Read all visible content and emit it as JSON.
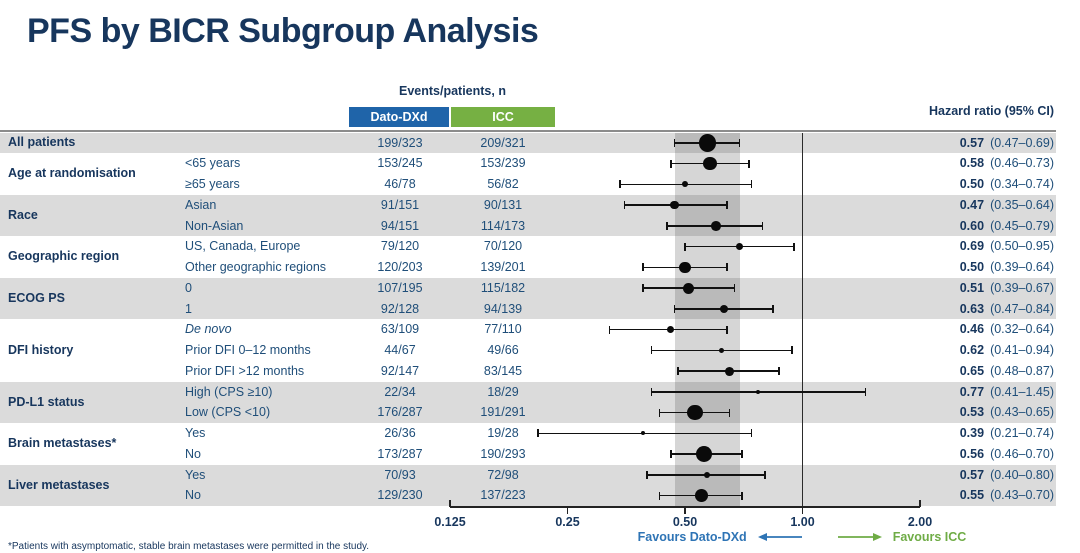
{
  "title": "PFS by BICR Subgroup Analysis",
  "header": {
    "events_label": "Events/patients, n",
    "arm1": "Dato-DXd",
    "arm2": "ICC",
    "hr_label": "Hazard ratio (95% CI)"
  },
  "favours": {
    "left_label": "Favours Dato-DXd",
    "right_label": "Favours ICC"
  },
  "footnote": "*Patients with asymptomatic, stable brain metastases were permitted in the study.",
  "colors": {
    "title_navy": "#17365D",
    "body_navy": "#1F4E79",
    "arm_dato_blue": "#1F64A9",
    "arm_icc_green": "#76B043",
    "favours_blue": "#2E74B5",
    "favours_green": "#6FAC46",
    "row_shade_gray": "#DBDBDB",
    "ci_band_gray": "#C3C3C3",
    "marker_black": "#0a0a0a"
  },
  "chart_data": {
    "type": "forest",
    "x_scale": "log2",
    "axis_ticks": [
      {
        "value": 0.125,
        "label": "0.125"
      },
      {
        "value": 0.25,
        "label": "0.25"
      },
      {
        "value": 0.5,
        "label": "0.50"
      },
      {
        "value": 1.0,
        "label": "1.00"
      },
      {
        "value": 2.0,
        "label": "2.00"
      }
    ],
    "reference_line": 1.0,
    "shaded_band": {
      "low": 0.47,
      "high": 0.69
    },
    "groups": [
      {
        "label": "All patients",
        "shaded": true,
        "rows": [
          {
            "subgroup": "",
            "dato": "199/323",
            "icc": "209/321",
            "hr": 0.57,
            "lo": 0.47,
            "hi": 0.69,
            "hr_text": "0.57",
            "ci_text": "(0.47–0.69)"
          }
        ]
      },
      {
        "label": "Age at randomisation",
        "shaded": false,
        "rows": [
          {
            "subgroup": "<65 years",
            "dato": "153/245",
            "icc": "153/239",
            "hr": 0.58,
            "lo": 0.46,
            "hi": 0.73,
            "hr_text": "0.58",
            "ci_text": "(0.46–0.73)"
          },
          {
            "subgroup": "≥65 years",
            "dato": "46/78",
            "icc": "56/82",
            "hr": 0.5,
            "lo": 0.34,
            "hi": 0.74,
            "hr_text": "0.50",
            "ci_text": "(0.34–0.74)"
          }
        ]
      },
      {
        "label": "Race",
        "shaded": true,
        "rows": [
          {
            "subgroup": "Asian",
            "dato": "91/151",
            "icc": "90/131",
            "hr": 0.47,
            "lo": 0.35,
            "hi": 0.64,
            "hr_text": "0.47",
            "ci_text": "(0.35–0.64)"
          },
          {
            "subgroup": "Non-Asian",
            "dato": "94/151",
            "icc": "114/173",
            "hr": 0.6,
            "lo": 0.45,
            "hi": 0.79,
            "hr_text": "0.60",
            "ci_text": "(0.45–0.79)"
          }
        ]
      },
      {
        "label": "Geographic region",
        "shaded": false,
        "rows": [
          {
            "subgroup": "US, Canada, Europe",
            "dato": "79/120",
            "icc": "70/120",
            "hr": 0.69,
            "lo": 0.5,
            "hi": 0.95,
            "hr_text": "0.69",
            "ci_text": "(0.50–0.95)"
          },
          {
            "subgroup": "Other geographic regions",
            "dato": "120/203",
            "icc": "139/201",
            "hr": 0.5,
            "lo": 0.39,
            "hi": 0.64,
            "hr_text": "0.50",
            "ci_text": "(0.39–0.64)"
          }
        ]
      },
      {
        "label": "ECOG PS",
        "shaded": true,
        "rows": [
          {
            "subgroup": "0",
            "dato": "107/195",
            "icc": "115/182",
            "hr": 0.51,
            "lo": 0.39,
            "hi": 0.67,
            "hr_text": "0.51",
            "ci_text": "(0.39–0.67)"
          },
          {
            "subgroup": "1",
            "dato": "92/128",
            "icc": "94/139",
            "hr": 0.63,
            "lo": 0.47,
            "hi": 0.84,
            "hr_text": "0.63",
            "ci_text": "(0.47–0.84)"
          }
        ]
      },
      {
        "label": "DFI history",
        "shaded": false,
        "rows": [
          {
            "subgroup": "De novo",
            "italic": true,
            "dato": "63/109",
            "icc": "77/110",
            "hr": 0.46,
            "lo": 0.32,
            "hi": 0.64,
            "hr_text": "0.46",
            "ci_text": "(0.32–0.64)"
          },
          {
            "subgroup": "Prior DFI 0–12 months",
            "dato": "44/67",
            "icc": "49/66",
            "hr": 0.62,
            "lo": 0.41,
            "hi": 0.94,
            "hr_text": "0.62",
            "ci_text": "(0.41–0.94)"
          },
          {
            "subgroup": "Prior DFI >12 months",
            "dato": "92/147",
            "icc": "83/145",
            "hr": 0.65,
            "lo": 0.48,
            "hi": 0.87,
            "hr_text": "0.65",
            "ci_text": "(0.48–0.87)"
          }
        ]
      },
      {
        "label": "PD-L1 status",
        "shaded": true,
        "rows": [
          {
            "subgroup": "High (CPS ≥10)",
            "dato": "22/34",
            "icc": "18/29",
            "hr": 0.77,
            "lo": 0.41,
            "hi": 1.45,
            "hr_text": "0.77",
            "ci_text": "(0.41–1.45)"
          },
          {
            "subgroup": "Low (CPS <10)",
            "dato": "176/287",
            "icc": "191/291",
            "hr": 0.53,
            "lo": 0.43,
            "hi": 0.65,
            "hr_text": "0.53",
            "ci_text": "(0.43–0.65)"
          }
        ]
      },
      {
        "label": "Brain metastases*",
        "shaded": false,
        "rows": [
          {
            "subgroup": "Yes",
            "dato": "26/36",
            "icc": "19/28",
            "hr": 0.39,
            "lo": 0.21,
            "hi": 0.74,
            "hr_text": "0.39",
            "ci_text": "(0.21–0.74)"
          },
          {
            "subgroup": "No",
            "dato": "173/287",
            "icc": "190/293",
            "hr": 0.56,
            "lo": 0.46,
            "hi": 0.7,
            "hr_text": "0.56",
            "ci_text": "(0.46–0.70)"
          }
        ]
      },
      {
        "label": "Liver metastases",
        "shaded": true,
        "rows": [
          {
            "subgroup": "Yes",
            "dato": "70/93",
            "icc": "72/98",
            "hr": 0.57,
            "lo": 0.4,
            "hi": 0.8,
            "hr_text": "0.57",
            "ci_text": "(0.40–0.80)"
          },
          {
            "subgroup": "No",
            "dato": "129/230",
            "icc": "137/223",
            "hr": 0.55,
            "lo": 0.43,
            "hi": 0.7,
            "hr_text": "0.55",
            "ci_text": "(0.43–0.70)"
          }
        ]
      }
    ]
  }
}
